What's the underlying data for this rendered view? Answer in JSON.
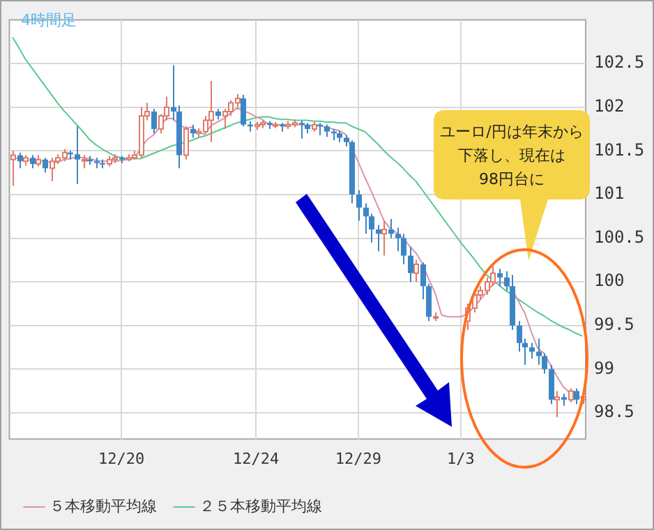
{
  "chart_data": {
    "type": "candlestick",
    "annotations": [
      "4時間足",
      "ユーロ/円は年末から",
      "下落し、現在は",
      "98円台に"
    ],
    "categories": [
      null,
      null,
      null,
      null,
      null,
      null,
      null,
      null,
      null,
      null,
      null,
      null,
      null,
      null,
      null,
      null,
      null,
      "12/20",
      null,
      null,
      null,
      null,
      null,
      null,
      null,
      null,
      null,
      null,
      null,
      null,
      null,
      null,
      null,
      null,
      null,
      null,
      null,
      null,
      "12/24",
      null,
      null,
      null,
      null,
      null,
      null,
      null,
      null,
      null,
      null,
      null,
      null,
      null,
      null,
      null,
      "12/29",
      null,
      null,
      null,
      null,
      null,
      null,
      null,
      null,
      null,
      null,
      null,
      null,
      null,
      null,
      null,
      "1/3",
      null,
      null,
      null,
      null,
      null,
      null,
      null,
      null,
      null,
      null,
      null,
      null,
      null,
      null,
      null,
      null,
      null,
      null,
      null
    ],
    "ohlc": [
      [
        101.4,
        101.5,
        101.1,
        101.45
      ],
      [
        101.45,
        101.48,
        101.3,
        101.38
      ],
      [
        101.38,
        101.45,
        101.33,
        101.42
      ],
      [
        101.42,
        101.45,
        101.3,
        101.35
      ],
      [
        101.35,
        101.45,
        101.32,
        101.4
      ],
      [
        101.4,
        101.42,
        101.25,
        101.3
      ],
      [
        101.3,
        101.42,
        101.15,
        101.38
      ],
      [
        101.38,
        101.46,
        101.35,
        101.42
      ],
      [
        101.42,
        101.52,
        101.38,
        101.48
      ],
      [
        101.48,
        101.5,
        101.4,
        101.46
      ],
      [
        101.46,
        101.78,
        101.12,
        101.4
      ],
      [
        101.4,
        101.45,
        101.3,
        101.4
      ],
      [
        101.4,
        101.44,
        101.34,
        101.38
      ],
      [
        101.38,
        101.42,
        101.3,
        101.36
      ],
      [
        101.36,
        101.4,
        101.3,
        101.35
      ],
      [
        101.35,
        101.44,
        101.32,
        101.4
      ],
      [
        101.4,
        101.46,
        101.36,
        101.42
      ],
      [
        101.42,
        101.44,
        101.36,
        101.4
      ],
      [
        101.4,
        101.46,
        101.38,
        101.42
      ],
      [
        101.42,
        101.5,
        101.4,
        101.45
      ],
      [
        101.45,
        102.0,
        101.42,
        101.9
      ],
      [
        101.9,
        102.05,
        101.85,
        101.95
      ],
      [
        101.95,
        101.98,
        101.7,
        101.75
      ],
      [
        101.75,
        101.92,
        101.7,
        101.9
      ],
      [
        101.9,
        102.12,
        101.85,
        102.0
      ],
      [
        102.0,
        102.48,
        101.85,
        101.95
      ],
      [
        101.95,
        102.02,
        101.3,
        101.45
      ],
      [
        101.45,
        101.78,
        101.4,
        101.75
      ],
      [
        101.75,
        101.8,
        101.65,
        101.7
      ],
      [
        101.7,
        101.76,
        101.66,
        101.72
      ],
      [
        101.72,
        101.9,
        101.7,
        101.85
      ],
      [
        101.85,
        102.3,
        101.6,
        101.95
      ],
      [
        101.95,
        101.98,
        101.86,
        101.9
      ],
      [
        101.9,
        101.98,
        101.75,
        101.95
      ],
      [
        101.95,
        102.08,
        101.9,
        102.05
      ],
      [
        102.05,
        102.15,
        102.0,
        102.1
      ],
      [
        102.1,
        102.14,
        101.78,
        101.8
      ],
      [
        101.8,
        101.84,
        101.72,
        101.78
      ],
      [
        101.78,
        101.83,
        101.74,
        101.8
      ],
      [
        101.8,
        101.85,
        101.76,
        101.82
      ],
      [
        101.82,
        101.84,
        101.75,
        101.8
      ],
      [
        101.8,
        101.83,
        101.76,
        101.8
      ],
      [
        101.8,
        101.82,
        101.72,
        101.78
      ],
      [
        101.78,
        101.84,
        101.75,
        101.8
      ],
      [
        101.8,
        101.86,
        101.77,
        101.82
      ],
      [
        101.82,
        101.85,
        101.64,
        101.8
      ],
      [
        101.8,
        101.82,
        101.7,
        101.75
      ],
      [
        101.75,
        101.83,
        101.72,
        101.8
      ],
      [
        101.8,
        101.82,
        101.68,
        101.78
      ],
      [
        101.78,
        101.8,
        101.66,
        101.72
      ],
      [
        101.72,
        101.75,
        101.62,
        101.7
      ],
      [
        101.7,
        101.73,
        101.6,
        101.65
      ],
      [
        101.65,
        101.68,
        101.55,
        101.6
      ],
      [
        101.6,
        101.62,
        100.9,
        101.0
      ],
      [
        101.0,
        101.05,
        100.7,
        100.85
      ],
      [
        100.85,
        100.9,
        100.55,
        100.75
      ],
      [
        100.75,
        100.78,
        100.45,
        100.6
      ],
      [
        100.6,
        100.65,
        100.35,
        100.55
      ],
      [
        100.55,
        100.7,
        100.3,
        100.6
      ],
      [
        100.6,
        100.72,
        100.5,
        100.55
      ],
      [
        100.55,
        100.62,
        100.35,
        100.5
      ],
      [
        100.5,
        100.55,
        100.2,
        100.3
      ],
      [
        100.3,
        100.4,
        100.0,
        100.1
      ],
      [
        100.1,
        100.25,
        100.0,
        100.2
      ],
      [
        100.2,
        100.22,
        99.8,
        99.95
      ],
      [
        99.95,
        99.98,
        99.55,
        99.6
      ],
      [
        99.6,
        99.65,
        99.55,
        99.6
      ],
      null,
      null,
      null,
      null,
      [
        99.55,
        99.75,
        99.45,
        99.7
      ],
      [
        99.7,
        99.88,
        99.65,
        99.85
      ],
      [
        99.85,
        99.95,
        99.8,
        99.9
      ],
      [
        99.9,
        100.05,
        99.85,
        100.0
      ],
      [
        100.0,
        100.18,
        99.95,
        100.1
      ],
      [
        100.1,
        100.15,
        99.95,
        100.05
      ],
      [
        100.05,
        100.12,
        99.9,
        99.95
      ],
      [
        99.95,
        100.08,
        99.45,
        99.5
      ],
      [
        99.5,
        99.55,
        99.2,
        99.3
      ],
      [
        99.3,
        99.35,
        99.05,
        99.25
      ],
      [
        99.25,
        99.3,
        99.12,
        99.2
      ],
      [
        99.2,
        99.35,
        99.05,
        99.15
      ],
      [
        99.15,
        99.18,
        98.95,
        99.0
      ],
      [
        99.0,
        99.05,
        98.6,
        98.65
      ],
      [
        98.65,
        98.75,
        98.45,
        98.68
      ],
      [
        98.68,
        98.72,
        98.58,
        98.65
      ],
      [
        98.65,
        98.78,
        98.62,
        98.75
      ],
      [
        98.75,
        98.78,
        98.6,
        98.65
      ],
      [
        98.65,
        98.7,
        98.6,
        98.68
      ]
    ],
    "series": [
      {
        "name": "５本移動平均線",
        "type": "line",
        "color": "#d994a8",
        "values": [
          101.42,
          101.41,
          101.4,
          101.39,
          101.4,
          101.37,
          101.37,
          101.37,
          101.4,
          101.41,
          101.43,
          101.42,
          101.41,
          101.39,
          101.38,
          101.38,
          101.38,
          101.39,
          101.4,
          101.42,
          101.52,
          101.63,
          101.68,
          101.77,
          101.87,
          101.87,
          101.8,
          101.76,
          101.77,
          101.71,
          101.69,
          101.79,
          101.83,
          101.87,
          101.93,
          101.99,
          101.96,
          101.93,
          101.89,
          101.86,
          101.8,
          101.8,
          101.8,
          101.8,
          101.8,
          101.8,
          101.79,
          101.79,
          101.79,
          101.77,
          101.75,
          101.73,
          101.69,
          101.53,
          101.37,
          101.2,
          101.04,
          100.87,
          100.7,
          100.61,
          100.56,
          100.5,
          100.41,
          100.33,
          100.21,
          100.03,
          99.87,
          99.62,
          99.6,
          99.6,
          99.6,
          99.63,
          99.71,
          99.79,
          99.88,
          99.97,
          100.0,
          99.98,
          99.92,
          99.78,
          99.64,
          99.43,
          99.24,
          99.18,
          99.05,
          98.92,
          98.8,
          98.73,
          98.68,
          98.68
        ]
      },
      {
        "name": "２５本移動平均線",
        "type": "line",
        "color": "#5cc890",
        "values": [
          102.8,
          102.68,
          102.55,
          102.45,
          102.35,
          102.25,
          102.15,
          102.05,
          101.96,
          101.88,
          101.8,
          101.72,
          101.63,
          101.57,
          101.52,
          101.48,
          101.44,
          101.42,
          101.41,
          101.41,
          101.41,
          101.44,
          101.47,
          101.5,
          101.53,
          101.56,
          101.58,
          101.6,
          101.62,
          101.65,
          101.67,
          101.7,
          101.73,
          101.76,
          101.79,
          101.82,
          101.84,
          101.86,
          101.88,
          101.89,
          101.89,
          101.87,
          101.86,
          101.86,
          101.85,
          101.85,
          101.85,
          101.84,
          101.84,
          101.83,
          101.83,
          101.82,
          101.82,
          101.78,
          101.75,
          101.72,
          101.65,
          101.58,
          101.5,
          101.43,
          101.37,
          101.3,
          101.22,
          101.15,
          101.05,
          100.95,
          100.85,
          100.75,
          100.65,
          100.55,
          100.45,
          100.36,
          100.27,
          100.17,
          100.08,
          100.02,
          99.96,
          99.9,
          99.85,
          99.8,
          99.75,
          99.7,
          99.65,
          99.61,
          99.56,
          99.52,
          99.48,
          99.45,
          99.41,
          99.38
        ]
      }
    ],
    "ylim": [
      98.2,
      103.0
    ],
    "yticks": [
      98.5,
      99,
      99.5,
      100,
      100.5,
      101,
      101.5,
      102,
      102.5
    ],
    "grid": true,
    "legend": "bottom"
  }
}
